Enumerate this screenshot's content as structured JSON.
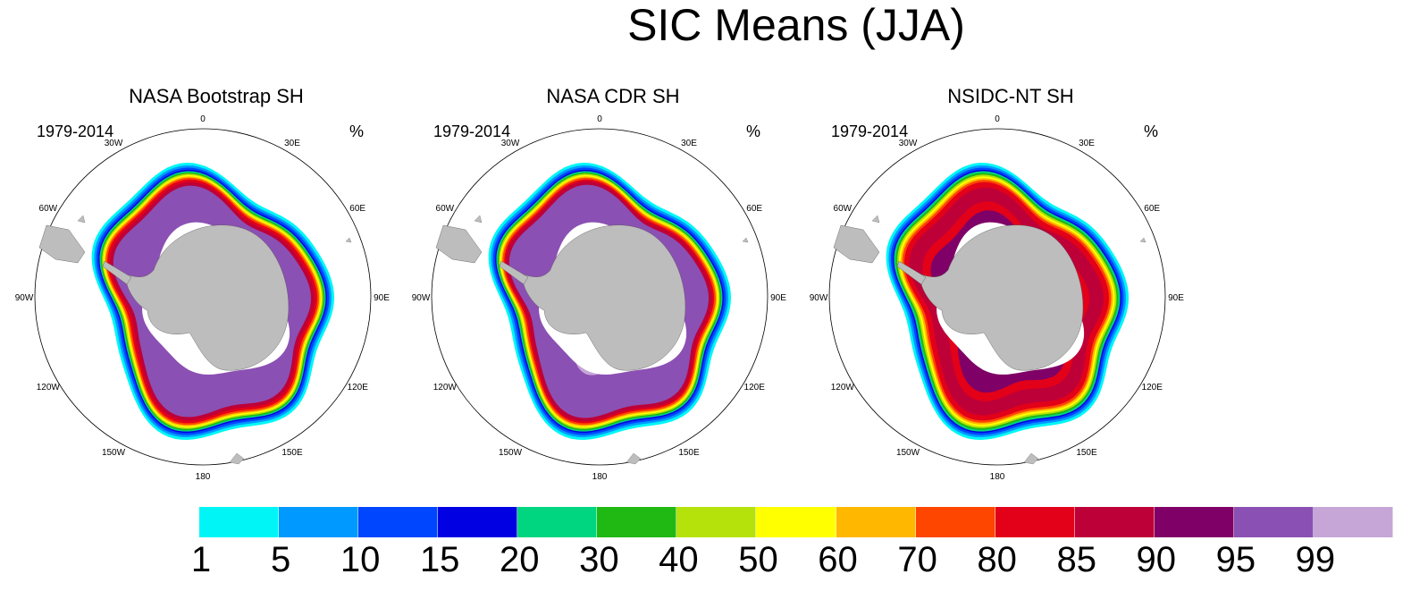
{
  "title": "SIC Means (JJA)",
  "panels": [
    {
      "title": "NASA Bootstrap SH",
      "period": "1979-2014",
      "unit": "%",
      "variant": "bootstrap"
    },
    {
      "title": "NASA CDR SH",
      "period": "1979-2014",
      "unit": "%",
      "variant": "cdr"
    },
    {
      "title": "NSIDC-NT SH",
      "period": "1979-2014",
      "unit": "%",
      "variant": "nt"
    }
  ],
  "longitude_labels": [
    "0",
    "30E",
    "60E",
    "90E",
    "120E",
    "150E",
    "180",
    "150W",
    "120W",
    "90W",
    "60W",
    "30W"
  ],
  "colorbar": {
    "levels": [
      "1",
      "5",
      "10",
      "15",
      "20",
      "30",
      "40",
      "50",
      "60",
      "70",
      "80",
      "85",
      "90",
      "95",
      "99"
    ],
    "colors": [
      "#00f6f6",
      "#0099ff",
      "#0046ff",
      "#0000e2",
      "#00d57f",
      "#20b913",
      "#b5e20a",
      "#ffff00",
      "#ffb700",
      "#ff4600",
      "#e30019",
      "#bd0038",
      "#7f0066",
      "#8b50b3",
      "#c5a6d7"
    ]
  },
  "map_colors": {
    "land": "#bdbdbd",
    "ocean": "#ffffff"
  }
}
